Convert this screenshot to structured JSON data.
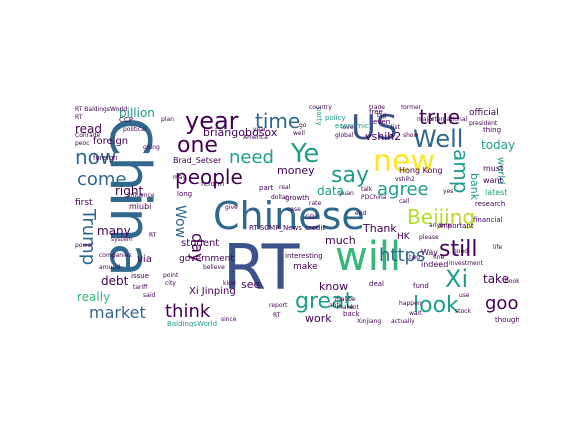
{
  "palette": {
    "dark_purple": "#440154",
    "indigo": "#3b528b",
    "slate": "#31688e",
    "teal_blue": "#26828e",
    "teal": "#1f9e89",
    "green": "#35b779",
    "light_green": "#6ece58",
    "yellow_green": "#b5de2b",
    "yellow": "#fde725"
  },
  "words": [
    {
      "text": "China"
    },
    {
      "text": "RT"
    },
    {
      "text": "Chinese"
    },
    {
      "text": "will"
    },
    {
      "text": "US"
    },
    {
      "text": "new"
    },
    {
      "text": "Ye"
    },
    {
      "text": "year"
    },
    {
      "text": "Well"
    },
    {
      "text": "say"
    },
    {
      "text": "people"
    },
    {
      "text": "time"
    },
    {
      "text": "one"
    },
    {
      "text": "true"
    },
    {
      "text": "amp"
    },
    {
      "text": "agree"
    },
    {
      "text": "Beijing"
    },
    {
      "text": "still"
    },
    {
      "text": "Xi"
    },
    {
      "text": "look"
    },
    {
      "text": "https"
    },
    {
      "text": "great"
    },
    {
      "text": "good"
    },
    {
      "text": "think"
    },
    {
      "text": "market"
    },
    {
      "text": "Trump"
    },
    {
      "text": "now"
    },
    {
      "text": "come"
    },
    {
      "text": "need"
    },
    {
      "text": "Wow"
    },
    {
      "text": "day"
    },
    {
      "text": "vshih2"
    },
    {
      "text": "briangobosox"
    },
    {
      "text": "billion"
    },
    {
      "text": "read"
    },
    {
      "text": "foreign"
    },
    {
      "text": "right"
    },
    {
      "text": "many"
    },
    {
      "text": "debt"
    },
    {
      "text": "really"
    },
    {
      "text": "via"
    },
    {
      "text": "see"
    },
    {
      "text": "money"
    },
    {
      "text": "data"
    },
    {
      "text": "much"
    },
    {
      "text": "know"
    },
    {
      "text": "work"
    },
    {
      "text": "Thank"
    },
    {
      "text": "take"
    },
    {
      "text": "bank"
    },
    {
      "text": "today"
    },
    {
      "text": "world"
    },
    {
      "text": "official"
    },
    {
      "text": "Xi Jinping"
    },
    {
      "text": "student"
    },
    {
      "text": "government"
    },
    {
      "text": "make"
    },
    {
      "text": "Hong Kong"
    },
    {
      "text": "HK"
    },
    {
      "text": "economic"
    },
    {
      "text": "policy"
    },
    {
      "text": "Brad_Setser"
    },
    {
      "text": "RT SCMP_News"
    },
    {
      "text": "credit"
    },
    {
      "text": "first"
    },
    {
      "text": "long"
    },
    {
      "text": "part"
    },
    {
      "text": "reform"
    },
    {
      "text": "foreign"
    },
    {
      "text": "important"
    },
    {
      "text": "latest"
    },
    {
      "text": "must"
    },
    {
      "text": "want"
    },
    {
      "text": "research"
    },
    {
      "text": "financial"
    },
    {
      "text": "investment"
    },
    {
      "text": "RT BaldingsWorld"
    },
    {
      "text": "BaldingsWorld"
    },
    {
      "text": "miubi"
    },
    {
      "text": "issue"
    },
    {
      "text": "CCP"
    },
    {
      "text": "back"
    },
    {
      "text": "fund"
    },
    {
      "text": "indeed"
    },
    {
      "text": "Way"
    },
    {
      "text": "even"
    },
    {
      "text": "free"
    },
    {
      "text": "trade"
    },
    {
      "text": "party"
    },
    {
      "text": "country"
    },
    {
      "text": "global"
    },
    {
      "text": "interesting"
    },
    {
      "text": "growth"
    },
    {
      "text": "deal"
    },
    {
      "text": "thought"
    },
    {
      "text": "thing"
    },
    {
      "text": "president"
    },
    {
      "text": "actually"
    },
    {
      "text": "Xinjiang"
    },
    {
      "text": "Conrade"
    },
    {
      "text": "around"
    },
    {
      "text": "companies"
    },
    {
      "text": "tariff"
    },
    {
      "text": "point"
    },
    {
      "text": "believe"
    },
    {
      "text": "city"
    },
    {
      "text": "going"
    },
    {
      "text": "influence"
    },
    {
      "text": "PDChina"
    },
    {
      "text": "major"
    },
    {
      "text": "international"
    },
    {
      "text": "former"
    },
    {
      "text": "list"
    },
    {
      "text": "make"
    },
    {
      "text": "show"
    },
    {
      "text": "anyone"
    },
    {
      "text": "happen"
    },
    {
      "text": "wait"
    },
    {
      "text": "stock"
    },
    {
      "text": "RT"
    },
    {
      "text": "peoc"
    },
    {
      "text": "power"
    },
    {
      "text": "system"
    },
    {
      "text": "year"
    },
    {
      "text": "political"
    },
    {
      "text": "America"
    },
    {
      "text": "report"
    },
    {
      "text": "please"
    },
    {
      "text": "give"
    },
    {
      "text": "maybe"
    },
    {
      "text": "love"
    },
    {
      "text": "talk"
    },
    {
      "text": "call"
    },
    {
      "text": "two"
    },
    {
      "text": "fine"
    },
    {
      "text": "yes"
    },
    {
      "text": "good"
    },
    {
      "text": "since"
    },
    {
      "text": "said"
    },
    {
      "text": "case"
    },
    {
      "text": "dollar"
    },
    {
      "text": "well"
    },
    {
      "text": "RT"
    },
    {
      "text": "RT"
    },
    {
      "text": "vshih2"
    },
    {
      "text": "kind"
    },
    {
      "text": "go"
    },
    {
      "text": "lot"
    },
    {
      "text": "anti"
    },
    {
      "text": "book"
    },
    {
      "text": "life"
    },
    {
      "text": "big"
    },
    {
      "text": "real"
    },
    {
      "text": "end"
    },
    {
      "text": "use"
    },
    {
      "text": "rate"
    },
    {
      "text": "plan"
    },
    {
      "text": "may"
    },
    {
      "text": "yuan"
    },
    {
      "text": "GDP"
    }
  ]
}
